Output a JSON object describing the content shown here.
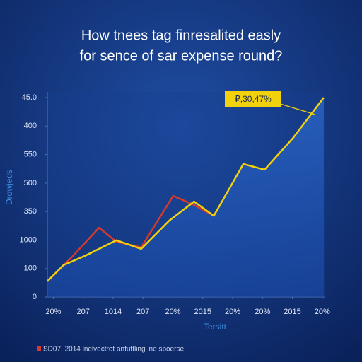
{
  "chart_data": {
    "type": "line",
    "title_lines": [
      "How tnees tag finresalited easly",
      "for sence of sar expense round?"
    ],
    "ylabel": "Drowjeds",
    "xlabel": "Tersitt",
    "note": "SD07, 2014 lnelvectrot anfuttling lne spoerse",
    "annotation": "₽,30,47%",
    "xlim": [
      -0.2,
      9.1
    ],
    "ylim": [
      0,
      7
    ],
    "xticks": [
      {
        "value": 0,
        "label": "20%"
      },
      {
        "value": 1,
        "label": "207"
      },
      {
        "value": 2,
        "label": "1014"
      },
      {
        "value": 3,
        "label": "207"
      },
      {
        "value": 4,
        "label": "20%"
      },
      {
        "value": 5,
        "label": "2015"
      },
      {
        "value": 6,
        "label": "20%"
      },
      {
        "value": 7,
        "label": "20%"
      },
      {
        "value": 8,
        "label": "2015"
      },
      {
        "value": 9,
        "label": "20%"
      }
    ],
    "yticks": [
      0,
      {
        "value": 1,
        "label": "100"
      },
      {
        "value": 2,
        "label": "1000"
      },
      {
        "value": 3,
        "label": "350"
      },
      {
        "value": 4,
        "label": "500"
      },
      {
        "value": 5,
        "label": "550"
      },
      {
        "value": 6,
        "label": "400"
      },
      {
        "value": 7,
        "label": "45.0"
      }
    ],
    "series": [
      {
        "color": "#f2d20c",
        "x": [
          -0.2,
          0.34,
          1.05,
          2.11,
          2.94,
          3.88,
          4.71,
          5.37,
          6.36,
          7.07,
          8.02,
          9.05
        ],
        "values": [
          0.55,
          1.12,
          1.44,
          1.99,
          1.69,
          2.68,
          3.35,
          2.85,
          4.67,
          4.47,
          5.58,
          7.0
        ]
      },
      {
        "color": "#d63a2c",
        "x": [
          -0.2,
          0.58,
          1.53,
          2.11,
          2.94,
          4.01,
          4.71,
          5.37
        ],
        "values": [
          0.55,
          1.36,
          2.43,
          1.94,
          1.74,
          3.55,
          3.23,
          2.85
        ]
      }
    ]
  }
}
